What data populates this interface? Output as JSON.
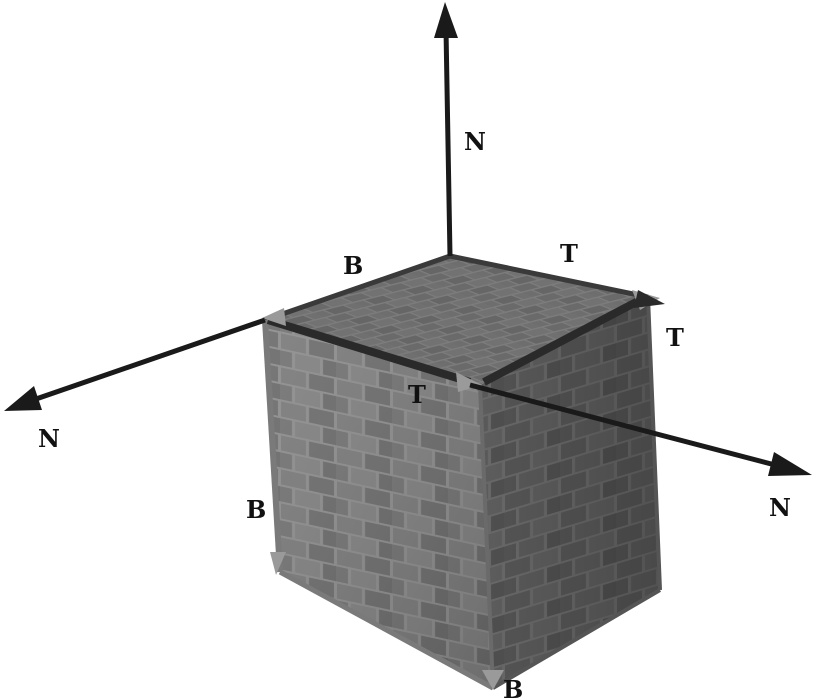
{
  "labels": {
    "top_normal": "N",
    "left_normal": "N",
    "right_normal": "N",
    "top_bitangent": "B",
    "top_tangent": "T",
    "right_tangent": "T",
    "front_tangent": "T",
    "left_bitangent": "B",
    "bottom_bitangent": "B"
  },
  "colors": {
    "arrow": "#1a1a1a",
    "arrow_dark": "#111111",
    "edge": "#333333",
    "tangent_head": "#9a9a9a",
    "mortar": "#8c8c8c",
    "brick_light": "#7a7a7a",
    "brick_mid": "#666666",
    "brick_dark": "#555555"
  }
}
